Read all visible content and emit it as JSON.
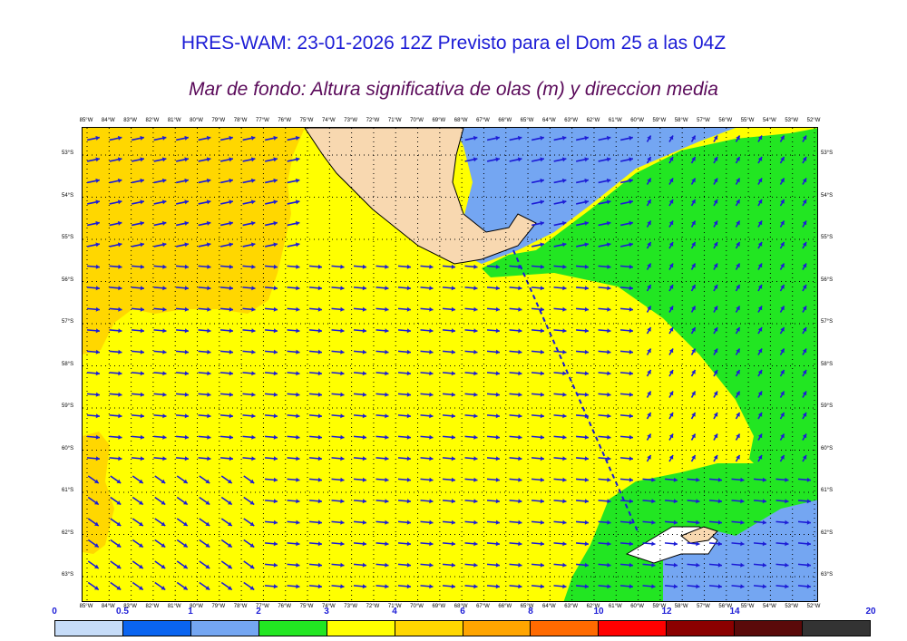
{
  "header": {
    "title": "HRES-WAM: 23-01-2026 12Z Previsto para el Dom 25 a las 04Z",
    "subtitle": "Mar de fondo: Altura significativa de olas (m) y direccion media"
  },
  "map": {
    "lon_labels": [
      "85°W",
      "84°W",
      "83°W",
      "82°W",
      "81°W",
      "80°W",
      "79°W",
      "78°W",
      "77°W",
      "76°W",
      "75°W",
      "74°W",
      "73°W",
      "72°W",
      "71°W",
      "70°W",
      "69°W",
      "68°W",
      "67°W",
      "66°W",
      "65°W",
      "64°W",
      "63°W",
      "62°W",
      "61°W",
      "60°W",
      "59°W",
      "58°W",
      "57°W",
      "56°W",
      "55°W",
      "54°W",
      "53°W",
      "52°W"
    ],
    "lat_labels": [
      "53°S",
      "54°S",
      "55°S",
      "56°S",
      "57°S",
      "58°S",
      "59°S",
      "60°S",
      "61°S",
      "62°S",
      "63°S"
    ],
    "colors": {
      "land": "#f8d8b0",
      "ocean_green": "#22e622",
      "ocean_yellow": "#ffff00",
      "ocean_gold": "#ffd700",
      "ocean_blue": "#74a6f2",
      "arrow": "#1c1cd6"
    }
  },
  "colorbar": {
    "levels": [
      "0",
      "0.5",
      "1",
      "2",
      "3",
      "4",
      "6",
      "8",
      "10",
      "12",
      "14",
      "20"
    ],
    "colors": [
      "#c6dcf8",
      "#0a64f0",
      "#74a6f2",
      "#22e622",
      "#ffff00",
      "#ffd700",
      "#ffa500",
      "#ff6a00",
      "#ff0000",
      "#8b0000",
      "#5a0a0a",
      "#333333"
    ]
  }
}
